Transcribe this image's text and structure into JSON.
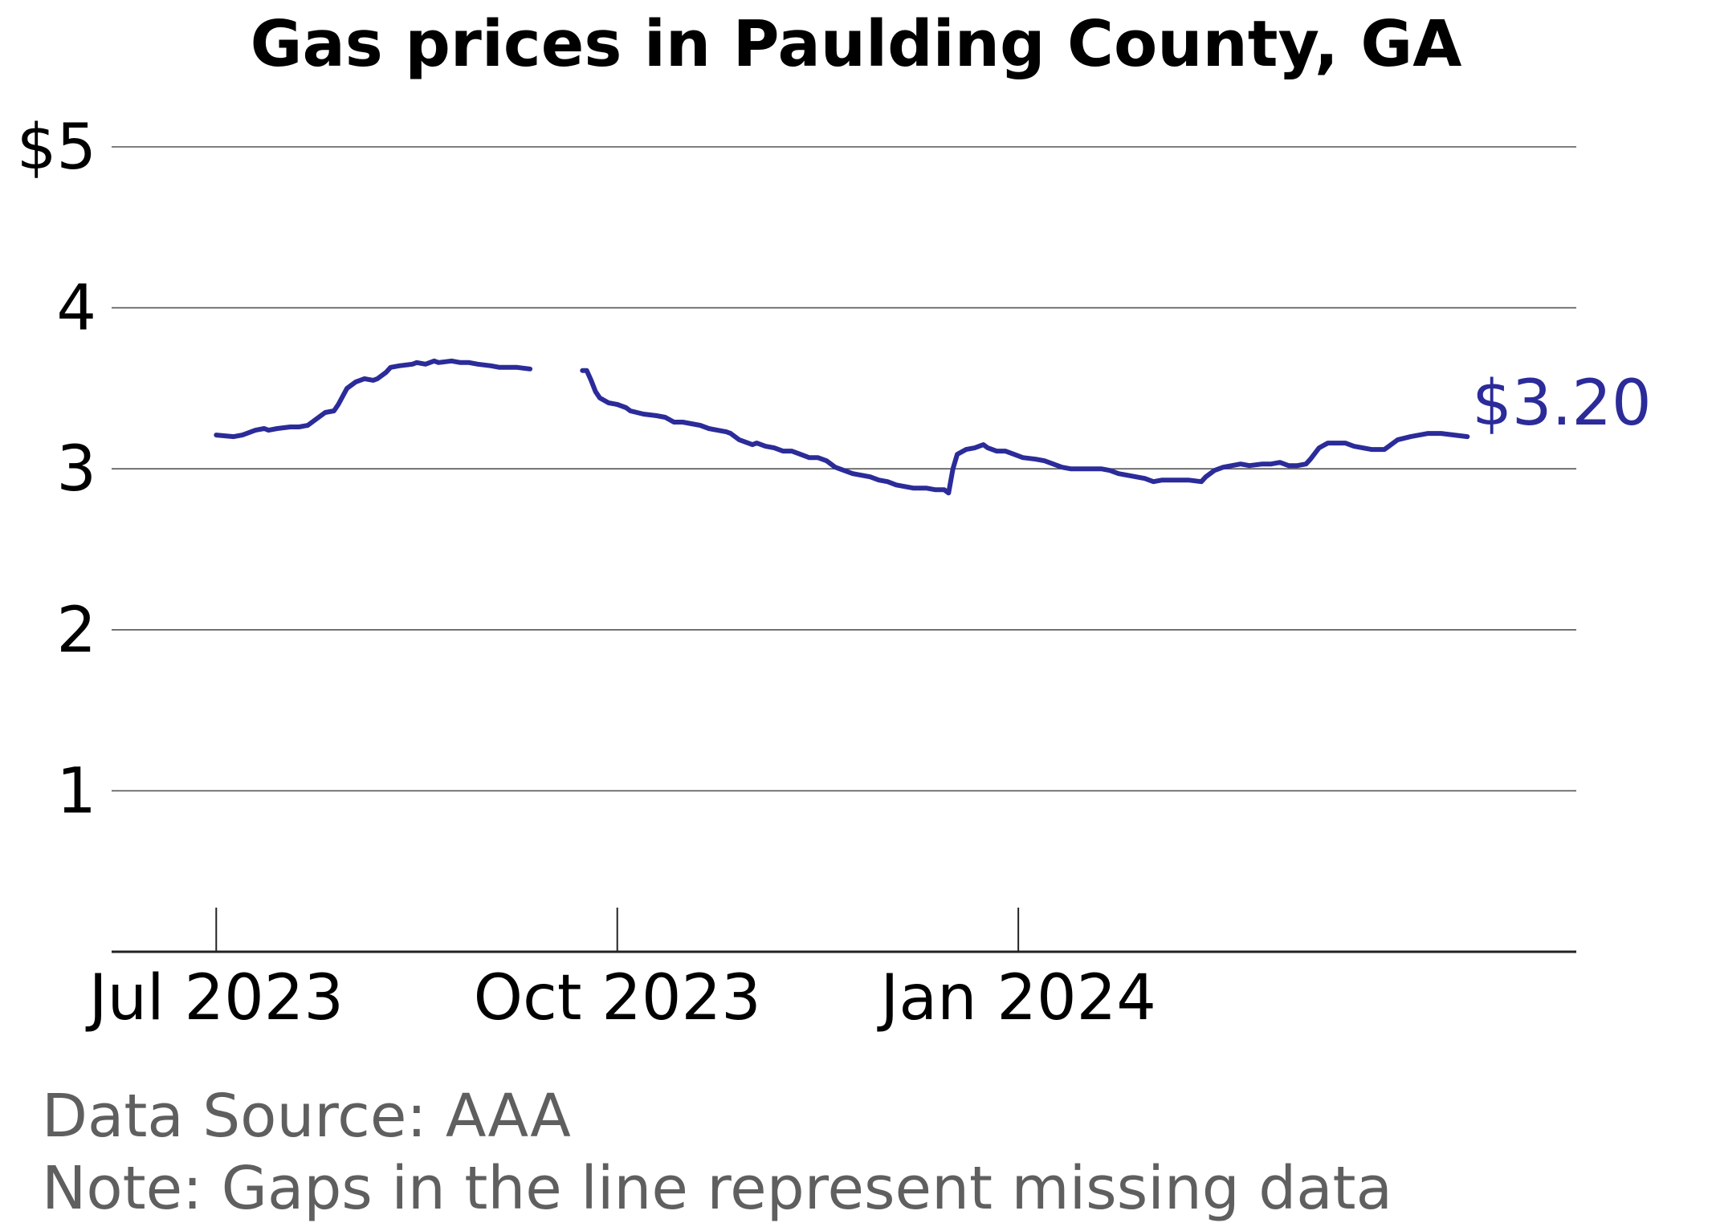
{
  "chart_data": {
    "type": "line",
    "title": "Gas prices in Paulding County, GA",
    "xlabel": "",
    "ylabel": "",
    "ylim": [
      0,
      5
    ],
    "xlim": [
      "2023-06-07",
      "2024-05-08"
    ],
    "y_ticks": [
      {
        "value": 1,
        "label": "1"
      },
      {
        "value": 2,
        "label": "2"
      },
      {
        "value": 3,
        "label": "3"
      },
      {
        "value": 4,
        "label": "4"
      },
      {
        "value": 5,
        "label": "$5"
      }
    ],
    "x_ticks": [
      {
        "date": "2023-07-01",
        "label": "Jul 2023"
      },
      {
        "date": "2023-10-01",
        "label": "Oct 2023"
      },
      {
        "date": "2024-01-01",
        "label": "Jan 2024"
      }
    ],
    "grid": "horizontal",
    "line_color": "#2b2b9a",
    "end_label": "$3.20",
    "series": [
      {
        "segments": [
          [
            [
              "2023-07-01",
              3.21
            ],
            [
              "2023-07-05",
              3.2
            ],
            [
              "2023-07-07",
              3.21
            ],
            [
              "2023-07-09",
              3.23
            ],
            [
              "2023-07-10",
              3.24
            ],
            [
              "2023-07-12",
              3.25
            ],
            [
              "2023-07-13",
              3.24
            ],
            [
              "2023-07-15",
              3.25
            ],
            [
              "2023-07-18",
              3.26
            ],
            [
              "2023-07-20",
              3.26
            ],
            [
              "2023-07-22",
              3.27
            ],
            [
              "2023-07-24",
              3.31
            ],
            [
              "2023-07-26",
              3.35
            ],
            [
              "2023-07-28",
              3.36
            ],
            [
              "2023-07-29",
              3.4
            ],
            [
              "2023-07-31",
              3.5
            ],
            [
              "2023-08-02",
              3.54
            ],
            [
              "2023-08-04",
              3.56
            ],
            [
              "2023-08-06",
              3.55
            ],
            [
              "2023-08-07",
              3.56
            ],
            [
              "2023-08-09",
              3.6
            ],
            [
              "2023-08-10",
              3.63
            ],
            [
              "2023-08-12",
              3.64
            ],
            [
              "2023-08-15",
              3.65
            ],
            [
              "2023-08-16",
              3.66
            ],
            [
              "2023-08-18",
              3.65
            ],
            [
              "2023-08-20",
              3.67
            ],
            [
              "2023-08-21",
              3.66
            ],
            [
              "2023-08-24",
              3.67
            ],
            [
              "2023-08-26",
              3.66
            ],
            [
              "2023-08-28",
              3.66
            ],
            [
              "2023-08-30",
              3.65
            ],
            [
              "2023-09-02",
              3.64
            ],
            [
              "2023-09-04",
              3.63
            ],
            [
              "2023-09-08",
              3.63
            ],
            [
              "2023-09-11",
              3.62
            ]
          ],
          [
            [
              "2023-09-23",
              3.61
            ],
            [
              "2023-09-24",
              3.61
            ],
            [
              "2023-09-25",
              3.55
            ],
            [
              "2023-09-26",
              3.48
            ],
            [
              "2023-09-27",
              3.44
            ],
            [
              "2023-09-29",
              3.41
            ],
            [
              "2023-10-01",
              3.4
            ],
            [
              "2023-10-03",
              3.38
            ],
            [
              "2023-10-04",
              3.36
            ],
            [
              "2023-10-07",
              3.34
            ],
            [
              "2023-10-10",
              3.33
            ],
            [
              "2023-10-12",
              3.32
            ],
            [
              "2023-10-14",
              3.29
            ],
            [
              "2023-10-16",
              3.29
            ],
            [
              "2023-10-18",
              3.28
            ],
            [
              "2023-10-20",
              3.27
            ],
            [
              "2023-10-22",
              3.25
            ],
            [
              "2023-10-24",
              3.24
            ],
            [
              "2023-10-26",
              3.23
            ],
            [
              "2023-10-27",
              3.22
            ],
            [
              "2023-10-29",
              3.18
            ],
            [
              "2023-10-31",
              3.16
            ],
            [
              "2023-11-01",
              3.15
            ],
            [
              "2023-11-02",
              3.16
            ],
            [
              "2023-11-04",
              3.14
            ],
            [
              "2023-11-06",
              3.13
            ],
            [
              "2023-11-08",
              3.11
            ],
            [
              "2023-11-10",
              3.11
            ],
            [
              "2023-11-12",
              3.09
            ],
            [
              "2023-11-14",
              3.07
            ],
            [
              "2023-11-16",
              3.07
            ],
            [
              "2023-11-18",
              3.05
            ],
            [
              "2023-11-20",
              3.01
            ],
            [
              "2023-11-22",
              2.99
            ],
            [
              "2023-11-24",
              2.97
            ],
            [
              "2023-11-26",
              2.96
            ],
            [
              "2023-11-28",
              2.95
            ],
            [
              "2023-11-30",
              2.93
            ],
            [
              "2023-12-02",
              2.92
            ],
            [
              "2023-12-04",
              2.9
            ],
            [
              "2023-12-06",
              2.89
            ],
            [
              "2023-12-08",
              2.88
            ],
            [
              "2023-12-11",
              2.88
            ],
            [
              "2023-12-13",
              2.87
            ],
            [
              "2023-12-15",
              2.87
            ],
            [
              "2023-12-16",
              2.85
            ],
            [
              "2023-12-17",
              3.0
            ],
            [
              "2023-12-18",
              3.09
            ],
            [
              "2023-12-20",
              3.12
            ],
            [
              "2023-12-22",
              3.13
            ],
            [
              "2023-12-24",
              3.15
            ],
            [
              "2023-12-25",
              3.13
            ],
            [
              "2023-12-27",
              3.11
            ],
            [
              "2023-12-29",
              3.11
            ],
            [
              "2023-12-31",
              3.09
            ],
            [
              "2024-01-02",
              3.07
            ],
            [
              "2024-01-05",
              3.06
            ],
            [
              "2024-01-07",
              3.05
            ],
            [
              "2024-01-09",
              3.03
            ],
            [
              "2024-01-11",
              3.01
            ],
            [
              "2024-01-13",
              3.0
            ],
            [
              "2024-01-15",
              3.0
            ],
            [
              "2024-01-17",
              3.0
            ],
            [
              "2024-01-20",
              3.0
            ],
            [
              "2024-01-22",
              2.99
            ],
            [
              "2024-01-24",
              2.97
            ],
            [
              "2024-01-26",
              2.96
            ],
            [
              "2024-01-28",
              2.95
            ],
            [
              "2024-01-30",
              2.94
            ],
            [
              "2024-02-01",
              2.92
            ],
            [
              "2024-02-03",
              2.93
            ],
            [
              "2024-02-06",
              2.93
            ],
            [
              "2024-02-09",
              2.93
            ],
            [
              "2024-02-12",
              2.92
            ],
            [
              "2024-02-13",
              2.95
            ],
            [
              "2024-02-15",
              2.99
            ],
            [
              "2024-02-17",
              3.01
            ],
            [
              "2024-02-19",
              3.02
            ],
            [
              "2024-02-21",
              3.03
            ],
            [
              "2024-02-23",
              3.02
            ],
            [
              "2024-02-26",
              3.03
            ],
            [
              "2024-02-28",
              3.03
            ],
            [
              "2024-03-01",
              3.04
            ],
            [
              "2024-03-03",
              3.02
            ],
            [
              "2024-03-05",
              3.02
            ],
            [
              "2024-03-07",
              3.03
            ],
            [
              "2024-03-08",
              3.06
            ],
            [
              "2024-03-10",
              3.13
            ],
            [
              "2024-03-12",
              3.16
            ],
            [
              "2024-03-14",
              3.16
            ],
            [
              "2024-03-16",
              3.16
            ],
            [
              "2024-03-18",
              3.14
            ],
            [
              "2024-03-20",
              3.13
            ],
            [
              "2024-03-22",
              3.12
            ],
            [
              "2024-03-25",
              3.12
            ],
            [
              "2024-03-26",
              3.14
            ],
            [
              "2024-03-28",
              3.18
            ],
            [
              "2024-03-31",
              3.2
            ],
            [
              "2024-04-02",
              3.21
            ],
            [
              "2024-04-04",
              3.22
            ],
            [
              "2024-04-07",
              3.22
            ],
            [
              "2024-04-10",
              3.21
            ],
            [
              "2024-04-13",
              3.2
            ]
          ]
        ]
      }
    ]
  },
  "footer": {
    "source": "Data Source: AAA",
    "note": "Note: Gaps in the line represent missing data"
  }
}
